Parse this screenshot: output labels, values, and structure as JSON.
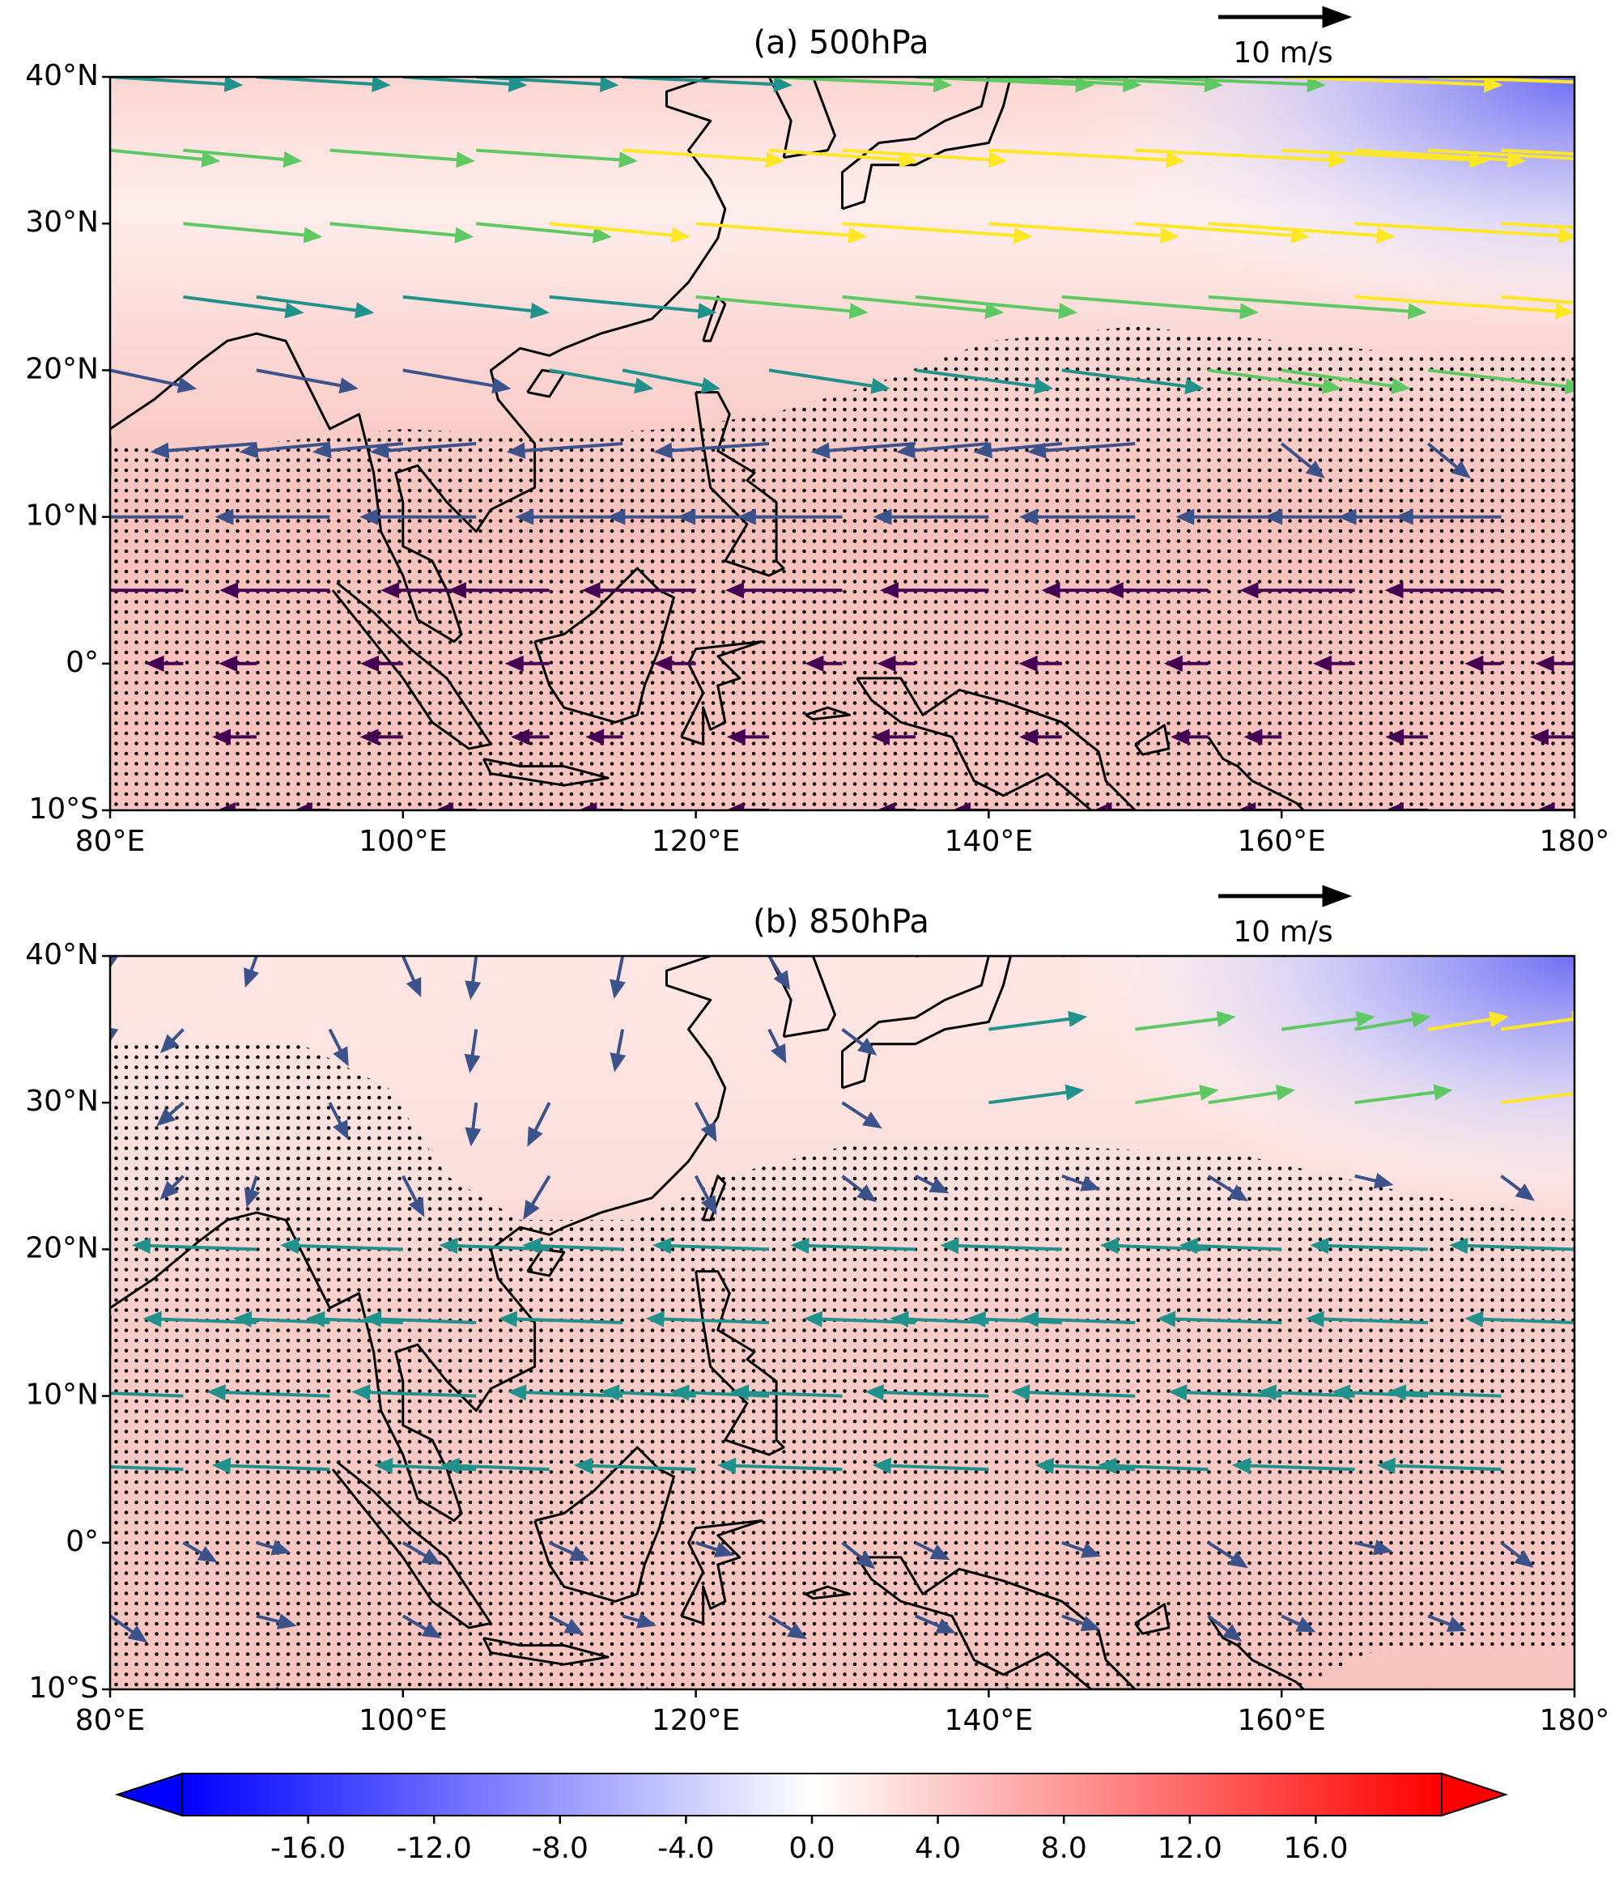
{
  "panels": [
    {
      "title": "(a) 500hPa",
      "reference_label": "10 m/s",
      "xlim": [
        80,
        180
      ],
      "ylim": [
        -10,
        40
      ],
      "xticks": [
        {
          "value": 80,
          "label": "80°E"
        },
        {
          "value": 100,
          "label": "100°E"
        },
        {
          "value": 120,
          "label": "120°E"
        },
        {
          "value": 140,
          "label": "140°E"
        },
        {
          "value": 160,
          "label": "160°E"
        },
        {
          "value": 180,
          "label": "180°"
        }
      ],
      "yticks": [
        {
          "value": -10,
          "label": "10°S"
        },
        {
          "value": 0,
          "label": "0°"
        },
        {
          "value": 10,
          "label": "10°N"
        },
        {
          "value": 20,
          "label": "20°N"
        },
        {
          "value": 30,
          "label": "30°N"
        },
        {
          "value": 40,
          "label": "40°N"
        }
      ]
    },
    {
      "title": "(b) 850hPa",
      "reference_label": "10 m/s",
      "xlim": [
        80,
        180
      ],
      "ylim": [
        -10,
        40
      ],
      "xticks": [
        {
          "value": 80,
          "label": "80°E"
        },
        {
          "value": 100,
          "label": "100°E"
        },
        {
          "value": 120,
          "label": "120°E"
        },
        {
          "value": 140,
          "label": "140°E"
        },
        {
          "value": 160,
          "label": "160°E"
        },
        {
          "value": 180,
          "label": "180°"
        }
      ],
      "yticks": [
        {
          "value": -10,
          "label": "10°S"
        },
        {
          "value": 0,
          "label": "0°"
        },
        {
          "value": 10,
          "label": "10°N"
        },
        {
          "value": 20,
          "label": "20°N"
        },
        {
          "value": 30,
          "label": "30°N"
        },
        {
          "value": 40,
          "label": "40°N"
        }
      ]
    }
  ],
  "colorbar": {
    "lim": [
      -20,
      20
    ],
    "colormap": [
      "#0000ff",
      "#ffffff",
      "#ff0000"
    ],
    "ticks": [
      {
        "value": -16,
        "label": "-16.0"
      },
      {
        "value": -12,
        "label": "-12.0"
      },
      {
        "value": -8,
        "label": "-8.0"
      },
      {
        "value": -4,
        "label": "-4.0"
      },
      {
        "value": 0,
        "label": "0.0"
      },
      {
        "value": 4,
        "label": "4.0"
      },
      {
        "value": 8,
        "label": "8.0"
      },
      {
        "value": 12,
        "label": "12.0"
      },
      {
        "value": 16,
        "label": "16.0"
      }
    ]
  }
}
